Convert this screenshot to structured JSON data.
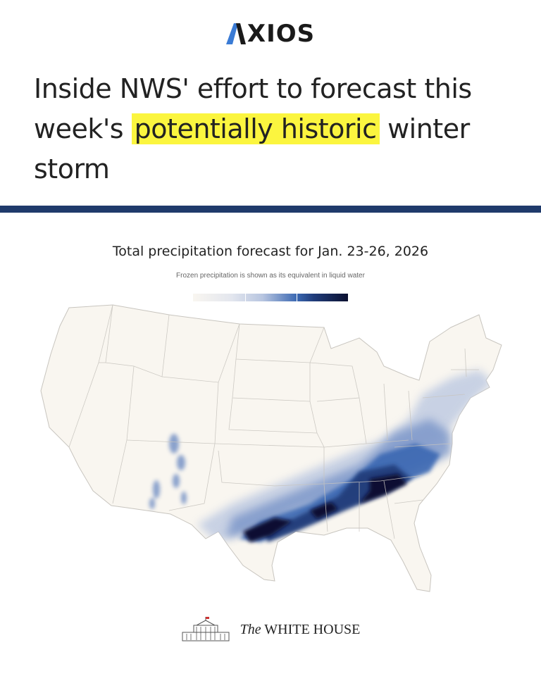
{
  "brand": {
    "logo_text": "XIOS",
    "icon": "axios-a-icon"
  },
  "headline": {
    "before": "Inside NWS' effort to forecast this week's ",
    "highlight": "potentially historic",
    "after": " winter storm"
  },
  "map": {
    "title": "Total precipitation forecast for Jan. 23-26, 2026",
    "subtitle": "Frozen precipitation is shown as its equivalent in liquid water",
    "legend_colors": [
      "#f9f6f0",
      "#e3e6ee",
      "#b7c5e0",
      "#3b68b2",
      "#203c7a",
      "#0b1030"
    ]
  },
  "footer": {
    "the": "The",
    "name": "WHITE HOUSE",
    "icon": "white-house-icon"
  },
  "colors": {
    "highlight": "#fbf53f",
    "rule": "#1f3a6b",
    "land": "#f9f6f0"
  }
}
